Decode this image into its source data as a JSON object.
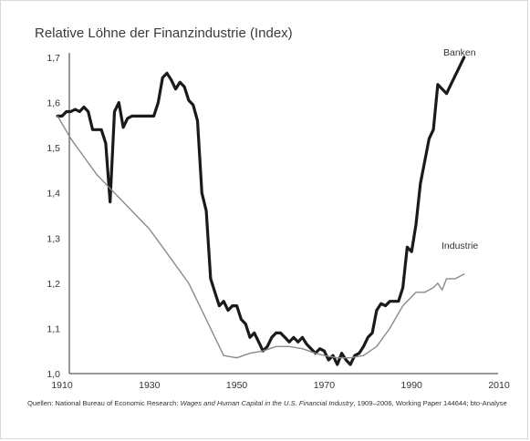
{
  "title": "Relative Löhne der Finanzindustrie (Index)",
  "source": {
    "prefix": "Quellen: National Bureau of Economic Research: ",
    "italic": "Wages and Human Capital  in the U.S. Financial Industry",
    "suffix": ", 1909–2006, Working Paper 144644; bto-Analyse"
  },
  "chart_data": {
    "type": "line",
    "title": "Relative Löhne der Finanzindustrie (Index)",
    "xlabel": "",
    "ylabel": "",
    "xlim": [
      1910,
      2010
    ],
    "ylim": [
      1.0,
      1.7
    ],
    "x_ticks": [
      "1910",
      "1930",
      "1950",
      "1970",
      "1990",
      "2010"
    ],
    "y_ticks": [
      "1,0",
      "1,1",
      "1,2",
      "1,3",
      "1,4",
      "1,5",
      "1,6",
      "1,7"
    ],
    "grid": false,
    "series": [
      {
        "name": "Banken",
        "color": "#1a1a1a",
        "points": [
          [
            1909,
            1.57
          ],
          [
            1910,
            1.57
          ],
          [
            1911,
            1.58
          ],
          [
            1912,
            1.58
          ],
          [
            1913,
            1.585
          ],
          [
            1914,
            1.58
          ],
          [
            1915,
            1.59
          ],
          [
            1916,
            1.58
          ],
          [
            1917,
            1.54
          ],
          [
            1918,
            1.54
          ],
          [
            1919,
            1.54
          ],
          [
            1920,
            1.51
          ],
          [
            1921,
            1.38
          ],
          [
            1922,
            1.58
          ],
          [
            1923,
            1.6
          ],
          [
            1924,
            1.545
          ],
          [
            1925,
            1.565
          ],
          [
            1926,
            1.57
          ],
          [
            1927,
            1.57
          ],
          [
            1928,
            1.57
          ],
          [
            1929,
            1.57
          ],
          [
            1930,
            1.57
          ],
          [
            1931,
            1.57
          ],
          [
            1932,
            1.6
          ],
          [
            1933,
            1.655
          ],
          [
            1934,
            1.665
          ],
          [
            1935,
            1.65
          ],
          [
            1936,
            1.63
          ],
          [
            1937,
            1.645
          ],
          [
            1938,
            1.635
          ],
          [
            1939,
            1.605
          ],
          [
            1940,
            1.595
          ],
          [
            1941,
            1.56
          ],
          [
            1942,
            1.4
          ],
          [
            1943,
            1.36
          ],
          [
            1944,
            1.21
          ],
          [
            1945,
            1.18
          ],
          [
            1946,
            1.15
          ],
          [
            1947,
            1.16
          ],
          [
            1948,
            1.14
          ],
          [
            1949,
            1.15
          ],
          [
            1950,
            1.15
          ],
          [
            1951,
            1.12
          ],
          [
            1952,
            1.11
          ],
          [
            1953,
            1.08
          ],
          [
            1954,
            1.09
          ],
          [
            1955,
            1.07
          ],
          [
            1956,
            1.05
          ],
          [
            1957,
            1.06
          ],
          [
            1958,
            1.08
          ],
          [
            1959,
            1.09
          ],
          [
            1960,
            1.09
          ],
          [
            1961,
            1.08
          ],
          [
            1962,
            1.07
          ],
          [
            1963,
            1.08
          ],
          [
            1964,
            1.07
          ],
          [
            1965,
            1.08
          ],
          [
            1966,
            1.065
          ],
          [
            1967,
            1.055
          ],
          [
            1968,
            1.045
          ],
          [
            1969,
            1.055
          ],
          [
            1970,
            1.05
          ],
          [
            1971,
            1.03
          ],
          [
            1972,
            1.04
          ],
          [
            1973,
            1.02
          ],
          [
            1974,
            1.045
          ],
          [
            1975,
            1.03
          ],
          [
            1976,
            1.02
          ],
          [
            1977,
            1.04
          ],
          [
            1978,
            1.045
          ],
          [
            1979,
            1.06
          ],
          [
            1980,
            1.08
          ],
          [
            1981,
            1.09
          ],
          [
            1982,
            1.14
          ],
          [
            1983,
            1.155
          ],
          [
            1984,
            1.15
          ],
          [
            1985,
            1.16
          ],
          [
            1986,
            1.16
          ],
          [
            1987,
            1.16
          ],
          [
            1988,
            1.19
          ],
          [
            1989,
            1.28
          ],
          [
            1990,
            1.27
          ],
          [
            1991,
            1.33
          ],
          [
            1992,
            1.42
          ],
          [
            1993,
            1.47
          ],
          [
            1994,
            1.52
          ],
          [
            1995,
            1.54
          ],
          [
            1996,
            1.64
          ],
          [
            1997,
            1.63
          ],
          [
            1998,
            1.62
          ],
          [
            1999,
            1.64
          ],
          [
            2000,
            1.66
          ],
          [
            2001,
            1.68
          ],
          [
            2002,
            1.7
          ]
        ]
      },
      {
        "name": "Industrie",
        "color": "#8a8a8a",
        "points": [
          [
            1909,
            1.57
          ],
          [
            1912,
            1.52
          ],
          [
            1915,
            1.48
          ],
          [
            1918,
            1.44
          ],
          [
            1921,
            1.41
          ],
          [
            1924,
            1.38
          ],
          [
            1927,
            1.35
          ],
          [
            1930,
            1.32
          ],
          [
            1933,
            1.28
          ],
          [
            1936,
            1.24
          ],
          [
            1939,
            1.2
          ],
          [
            1942,
            1.14
          ],
          [
            1945,
            1.08
          ],
          [
            1947,
            1.04
          ],
          [
            1950,
            1.035
          ],
          [
            1953,
            1.045
          ],
          [
            1956,
            1.05
          ],
          [
            1959,
            1.06
          ],
          [
            1962,
            1.06
          ],
          [
            1965,
            1.055
          ],
          [
            1968,
            1.045
          ],
          [
            1970,
            1.04
          ],
          [
            1973,
            1.035
          ],
          [
            1976,
            1.035
          ],
          [
            1979,
            1.04
          ],
          [
            1982,
            1.06
          ],
          [
            1985,
            1.1
          ],
          [
            1988,
            1.15
          ],
          [
            1991,
            1.18
          ],
          [
            1993,
            1.18
          ],
          [
            1995,
            1.19
          ],
          [
            1996,
            1.2
          ],
          [
            1997,
            1.185
          ],
          [
            1998,
            1.21
          ],
          [
            1999,
            1.21
          ],
          [
            2000,
            1.21
          ],
          [
            2001,
            1.215
          ],
          [
            2002,
            1.22
          ]
        ]
      }
    ]
  }
}
